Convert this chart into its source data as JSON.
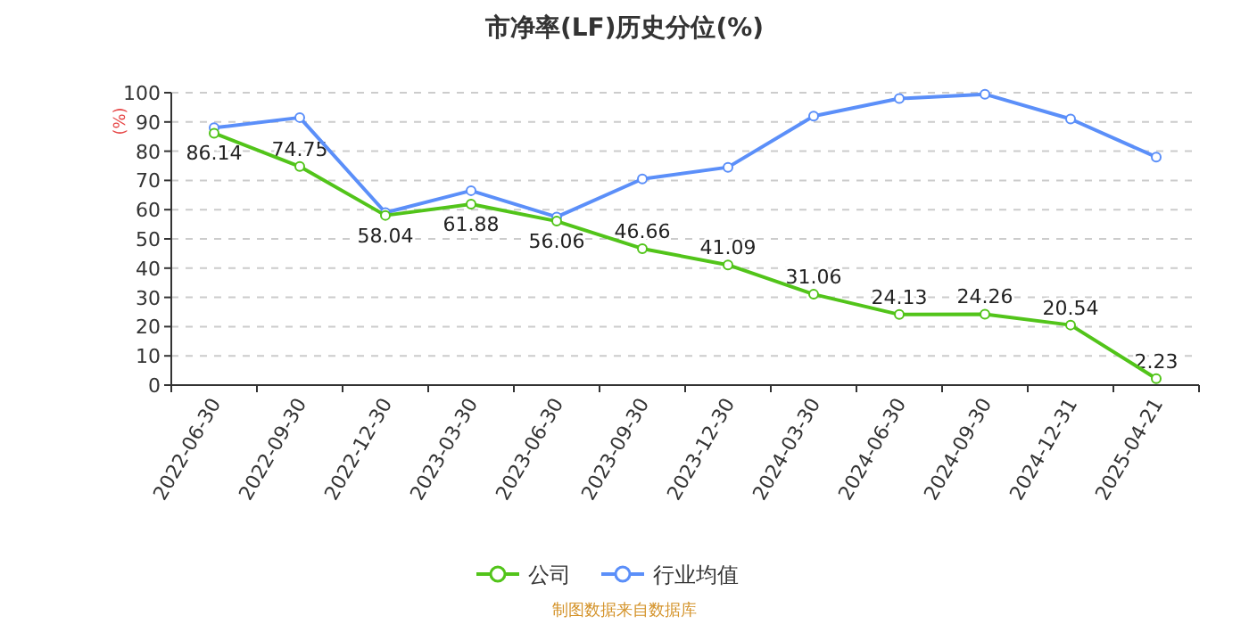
{
  "chart_data": {
    "type": "line",
    "title": "市净率(LF)历史分位(%)",
    "ylabel": "(%)",
    "categories": [
      "2022-06-30",
      "2022-09-30",
      "2022-12-30",
      "2023-03-30",
      "2023-06-30",
      "2023-09-30",
      "2023-12-30",
      "2024-03-30",
      "2024-06-30",
      "2024-09-30",
      "2024-12-31",
      "2025-04-21"
    ],
    "series": [
      {
        "name": "公司",
        "color": "#52c41a",
        "values": [
          86.14,
          74.75,
          58.04,
          61.88,
          56.06,
          46.66,
          41.09,
          31.06,
          24.13,
          24.26,
          20.54,
          2.23
        ],
        "value_labels": [
          "86.14",
          "74.75",
          "58.04",
          "61.88",
          "56.06",
          "46.66",
          "41.09",
          "31.06",
          "24.13",
          "24.26",
          "20.54",
          "2.23"
        ]
      },
      {
        "name": "行业均值",
        "color": "#5b8ff9",
        "values": [
          88,
          91.5,
          59,
          66.5,
          57.5,
          70.5,
          74.5,
          92,
          98,
          99.5,
          91,
          78
        ]
      }
    ],
    "ylim": [
      0,
      100
    ],
    "yticks": [
      0,
      10,
      20,
      30,
      40,
      50,
      60,
      70,
      80,
      90,
      100
    ],
    "grid": "y",
    "legend": "bottom",
    "marker": "circle",
    "annotations": [
      "制图数据来自数据库"
    ]
  }
}
